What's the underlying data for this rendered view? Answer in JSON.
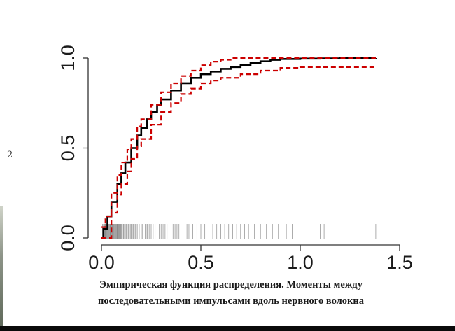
{
  "margin_number": "2",
  "caption": {
    "line1": "Эмпирическая функция распределения. Моменты между",
    "line2": "последовательными импульсами вдоль нервного волокна"
  },
  "colors": {
    "ecdf": "#000000",
    "bands": "#cc0000",
    "rug": "#8a8a8a",
    "axis": "#333333"
  },
  "chart_data": {
    "type": "line",
    "title": "",
    "xlabel": "",
    "ylabel": "",
    "xlim": [
      0,
      1.5
    ],
    "ylim": [
      0,
      1
    ],
    "x_ticks": [
      "0.0",
      "0.5",
      "1.0",
      "1.5"
    ],
    "y_ticks": [
      "0.0",
      "0.5",
      "1.0"
    ],
    "grid": false,
    "legend": "none",
    "series": [
      {
        "role": "ecdf",
        "style": "solid-step",
        "points": [
          [
            0,
            0
          ],
          [
            0.01,
            0.05
          ],
          [
            0.03,
            0.12
          ],
          [
            0.05,
            0.2
          ],
          [
            0.08,
            0.3
          ],
          [
            0.1,
            0.36
          ],
          [
            0.12,
            0.42
          ],
          [
            0.15,
            0.5
          ],
          [
            0.18,
            0.57
          ],
          [
            0.2,
            0.61
          ],
          [
            0.23,
            0.66
          ],
          [
            0.25,
            0.7
          ],
          [
            0.28,
            0.74
          ],
          [
            0.3,
            0.77
          ],
          [
            0.35,
            0.82
          ],
          [
            0.4,
            0.86
          ],
          [
            0.45,
            0.89
          ],
          [
            0.5,
            0.91
          ],
          [
            0.55,
            0.925
          ],
          [
            0.6,
            0.94
          ],
          [
            0.65,
            0.95
          ],
          [
            0.7,
            0.962
          ],
          [
            0.75,
            0.972
          ],
          [
            0.8,
            0.982
          ],
          [
            0.85,
            0.99
          ],
          [
            0.9,
            0.995
          ],
          [
            1.0,
            0.997
          ],
          [
            1.1,
            0.998
          ],
          [
            1.2,
            0.999
          ],
          [
            1.38,
            1.0
          ]
        ]
      },
      {
        "role": "upper-band",
        "style": "dashed",
        "points": [
          [
            0,
            0.06
          ],
          [
            0.02,
            0.12
          ],
          [
            0.05,
            0.25
          ],
          [
            0.08,
            0.35
          ],
          [
            0.1,
            0.42
          ],
          [
            0.13,
            0.49
          ],
          [
            0.15,
            0.55
          ],
          [
            0.18,
            0.62
          ],
          [
            0.2,
            0.66
          ],
          [
            0.25,
            0.74
          ],
          [
            0.3,
            0.81
          ],
          [
            0.35,
            0.86
          ],
          [
            0.4,
            0.9
          ],
          [
            0.45,
            0.93
          ],
          [
            0.5,
            0.96
          ],
          [
            0.55,
            0.98
          ],
          [
            0.6,
            0.99
          ],
          [
            0.65,
            1.0
          ],
          [
            1.38,
            1.0
          ]
        ]
      },
      {
        "role": "lower-band",
        "style": "dashed",
        "points": [
          [
            0,
            0
          ],
          [
            0.02,
            0.0
          ],
          [
            0.05,
            0.14
          ],
          [
            0.08,
            0.24
          ],
          [
            0.1,
            0.3
          ],
          [
            0.13,
            0.37
          ],
          [
            0.15,
            0.44
          ],
          [
            0.18,
            0.51
          ],
          [
            0.2,
            0.55
          ],
          [
            0.25,
            0.63
          ],
          [
            0.3,
            0.7
          ],
          [
            0.35,
            0.75
          ],
          [
            0.4,
            0.8
          ],
          [
            0.45,
            0.83
          ],
          [
            0.5,
            0.86
          ],
          [
            0.55,
            0.875
          ],
          [
            0.6,
            0.89
          ],
          [
            0.7,
            0.91
          ],
          [
            0.8,
            0.93
          ],
          [
            0.9,
            0.945
          ],
          [
            1.0,
            0.95
          ],
          [
            1.38,
            0.95
          ]
        ]
      }
    ],
    "rug": [
      0.005,
      0.01,
      0.012,
      0.015,
      0.018,
      0.02,
      0.023,
      0.025,
      0.028,
      0.03,
      0.033,
      0.035,
      0.038,
      0.04,
      0.043,
      0.045,
      0.048,
      0.05,
      0.053,
      0.055,
      0.058,
      0.06,
      0.063,
      0.065,
      0.068,
      0.07,
      0.073,
      0.075,
      0.078,
      0.08,
      0.083,
      0.085,
      0.088,
      0.09,
      0.093,
      0.095,
      0.098,
      0.1,
      0.105,
      0.11,
      0.113,
      0.118,
      0.12,
      0.125,
      0.13,
      0.135,
      0.14,
      0.145,
      0.15,
      0.155,
      0.16,
      0.165,
      0.17,
      0.175,
      0.18,
      0.19,
      0.2,
      0.205,
      0.21,
      0.22,
      0.225,
      0.23,
      0.24,
      0.25,
      0.26,
      0.27,
      0.28,
      0.29,
      0.3,
      0.31,
      0.32,
      0.33,
      0.34,
      0.35,
      0.36,
      0.37,
      0.38,
      0.39,
      0.41,
      0.43,
      0.44,
      0.46,
      0.48,
      0.5,
      0.52,
      0.54,
      0.56,
      0.58,
      0.6,
      0.62,
      0.64,
      0.66,
      0.68,
      0.7,
      0.72,
      0.74,
      0.77,
      0.8,
      0.83,
      0.86,
      0.89,
      0.93,
      0.96,
      1.1,
      1.12,
      1.21,
      1.35,
      1.38
    ]
  }
}
